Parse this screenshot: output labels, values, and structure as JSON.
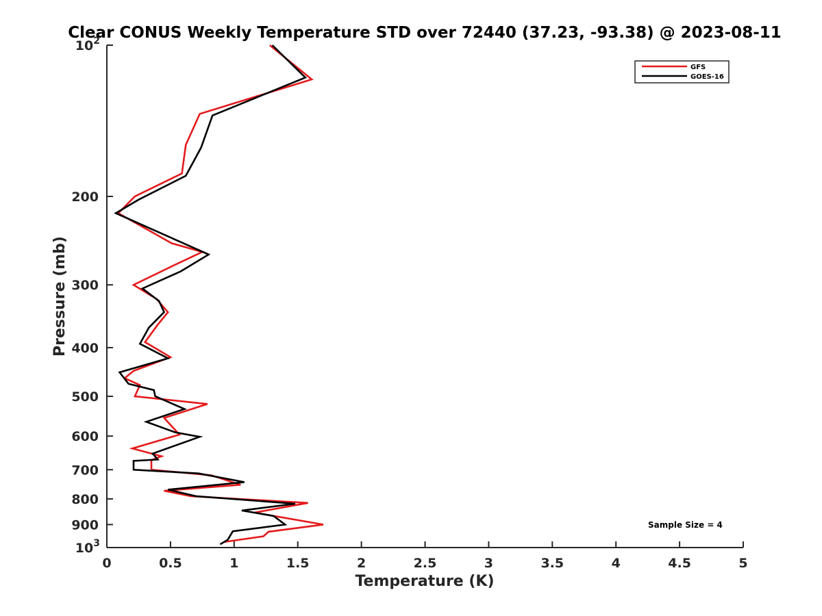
{
  "chart_data": {
    "type": "line",
    "title": "Clear CONUS Weekly Temperature STD over 72440 (37.23, -93.38) @ 2023-08-11",
    "xlabel": "Temperature (K)",
    "ylabel": "Pressure (mb)",
    "xlim": [
      0,
      5
    ],
    "ylim": [
      100,
      1000
    ],
    "y_scale": "log",
    "y_reversed": true,
    "grid": false,
    "legend_position": "top-right",
    "x_ticks": [
      "0",
      "0.5",
      "1",
      "1.5",
      "2",
      "2.5",
      "3",
      "3.5",
      "4",
      "4.5",
      "5"
    ],
    "y_ticks": [
      {
        "value": 100,
        "label": "10",
        "sup": "2"
      },
      {
        "value": 200,
        "label": "200",
        "sup": ""
      },
      {
        "value": 300,
        "label": "300",
        "sup": ""
      },
      {
        "value": 400,
        "label": "400",
        "sup": ""
      },
      {
        "value": 500,
        "label": "500",
        "sup": ""
      },
      {
        "value": 600,
        "label": "600",
        "sup": ""
      },
      {
        "value": 700,
        "label": "700",
        "sup": ""
      },
      {
        "value": 800,
        "label": "800",
        "sup": ""
      },
      {
        "value": 900,
        "label": "900",
        "sup": ""
      },
      {
        "value": 1000,
        "label": "10",
        "sup": "3"
      }
    ],
    "annotation": "Sample Size = 4",
    "series": [
      {
        "name": "GFS",
        "color": "#e41a1c",
        "points": [
          [
            1.28,
            100
          ],
          [
            1.61,
            117
          ],
          [
            0.73,
            137
          ],
          [
            0.62,
            158
          ],
          [
            0.59,
            180
          ],
          [
            0.22,
            200
          ],
          [
            0.09,
            216
          ],
          [
            0.51,
            248
          ],
          [
            0.75,
            258
          ],
          [
            0.53,
            274
          ],
          [
            0.21,
            300
          ],
          [
            0.39,
            320
          ],
          [
            0.48,
            340
          ],
          [
            0.4,
            360
          ],
          [
            0.3,
            390
          ],
          [
            0.5,
            418
          ],
          [
            0.21,
            445
          ],
          [
            0.14,
            460
          ],
          [
            0.26,
            475
          ],
          [
            0.22,
            500
          ],
          [
            0.79,
            518
          ],
          [
            0.45,
            552
          ],
          [
            0.57,
            596
          ],
          [
            0.2,
            635
          ],
          [
            0.43,
            658
          ],
          [
            0.35,
            670
          ],
          [
            0.35,
            700
          ],
          [
            0.82,
            718
          ],
          [
            1.05,
            750
          ],
          [
            0.45,
            771
          ],
          [
            0.66,
            790
          ],
          [
            1.58,
            815
          ],
          [
            1.16,
            852
          ],
          [
            1.7,
            900
          ],
          [
            1.27,
            930
          ],
          [
            1.23,
            950
          ],
          [
            0.92,
            975
          ]
        ]
      },
      {
        "name": "GOES-16",
        "color": "#000000",
        "points": [
          [
            1.3,
            100
          ],
          [
            1.56,
            116
          ],
          [
            0.83,
            138
          ],
          [
            0.74,
            160
          ],
          [
            0.62,
            182
          ],
          [
            0.25,
            203
          ],
          [
            0.07,
            216
          ],
          [
            0.54,
            244
          ],
          [
            0.8,
            261
          ],
          [
            0.58,
            282
          ],
          [
            0.28,
            305
          ],
          [
            0.41,
            323
          ],
          [
            0.45,
            340
          ],
          [
            0.33,
            365
          ],
          [
            0.26,
            393
          ],
          [
            0.48,
            420
          ],
          [
            0.1,
            448
          ],
          [
            0.17,
            472
          ],
          [
            0.37,
            486
          ],
          [
            0.38,
            500
          ],
          [
            0.61,
            530
          ],
          [
            0.31,
            562
          ],
          [
            0.54,
            590
          ],
          [
            0.73,
            602
          ],
          [
            0.36,
            650
          ],
          [
            0.4,
            668
          ],
          [
            0.21,
            672
          ],
          [
            0.21,
            700
          ],
          [
            0.72,
            712
          ],
          [
            1.08,
            741
          ],
          [
            0.48,
            767
          ],
          [
            0.7,
            790
          ],
          [
            1.48,
            818
          ],
          [
            1.06,
            844
          ],
          [
            1.31,
            865
          ],
          [
            1.4,
            900
          ],
          [
            0.99,
            928
          ],
          [
            0.95,
            965
          ],
          [
            0.89,
            985
          ]
        ]
      }
    ]
  }
}
